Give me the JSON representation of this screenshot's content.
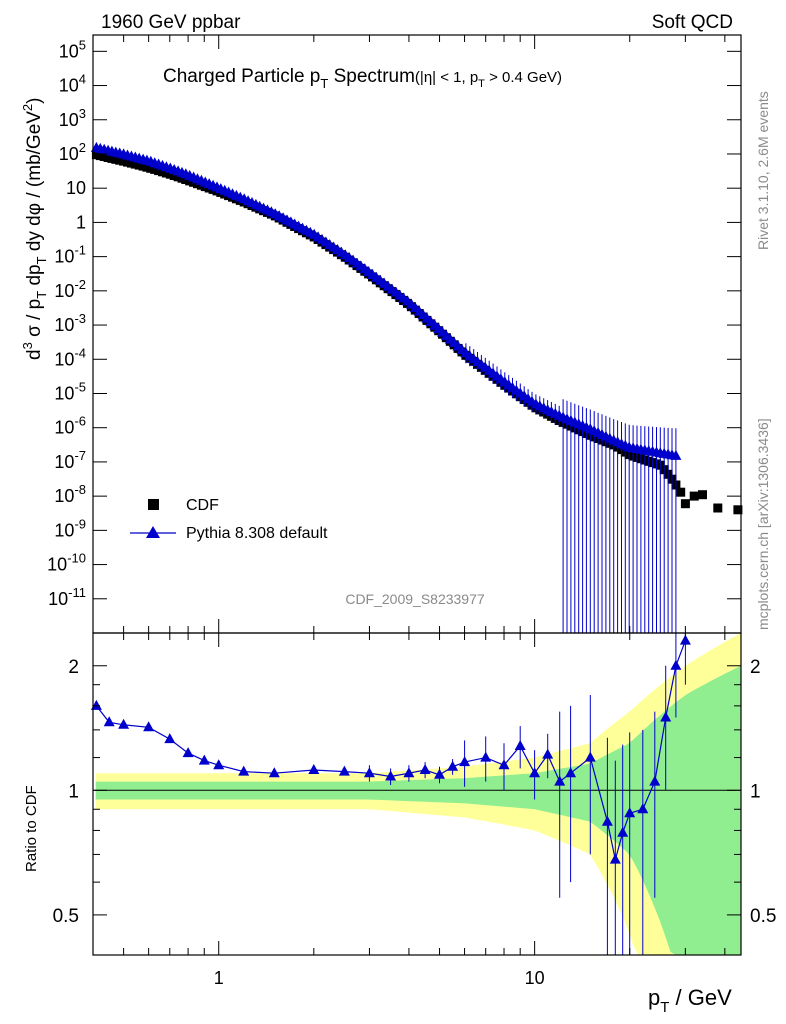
{
  "header": {
    "left": "1960 GeV ppbar",
    "right": "Soft QCD",
    "side_top": "Rivet 3.1.10,  2.6M events",
    "side_bottom": "mcplots.cern.ch [arXiv:1306.3436]",
    "analysis_id": "CDF_2009_S8233977"
  },
  "colors": {
    "cdf": "#000000",
    "pythia": "#0000cc",
    "band_inner": "#90ee90",
    "band_outer": "#ffff99"
  },
  "chart_data": [
    {
      "type": "scatter",
      "panel": "main",
      "title": "Charged Particle p_T Spectrum",
      "title_suffix": "(|η| < 1, p_T > 0.4 GeV)",
      "ylabel": "d³σ / p_T dp_T dy dφ / (mb/GeV²)",
      "xlabel": "p_T / GeV",
      "xscale": "log",
      "yscale": "log",
      "xlim": [
        0.4,
        45
      ],
      "ylim": [
        1e-12,
        300000.0
      ],
      "y_tick_labels": [
        "10^-11",
        "10^-10",
        "10^-9",
        "10^-8",
        "10^-7",
        "10^-6",
        "10^-5",
        "10^-4",
        "10^-3",
        "10^-2",
        "10^-1",
        "1",
        "10",
        "10^2",
        "10^3",
        "10^4",
        "10^5"
      ],
      "x_tick_labels": [
        "1",
        "10"
      ],
      "legend_position": "bottom-left",
      "series": [
        {
          "name": "CDF",
          "marker": "square",
          "points": [
            [
              0.41,
              95
            ],
            [
              0.5,
              62
            ],
            [
              0.6,
              40
            ],
            [
              0.7,
              26
            ],
            [
              0.8,
              17
            ],
            [
              1.0,
              8
            ],
            [
              1.2,
              4
            ],
            [
              1.5,
              1.6
            ],
            [
              2.0,
              0.38
            ],
            [
              2.5,
              0.1
            ],
            [
              3.0,
              0.03
            ],
            [
              4.0,
              0.004
            ],
            [
              5.0,
              0.00065
            ],
            [
              6.0,
              0.00014
            ],
            [
              8.0,
              1.8e-05
            ],
            [
              10.0,
              4e-06
            ],
            [
              12.0,
              1.6e-06
            ],
            [
              15.0,
              6e-07
            ],
            [
              18.0,
              3e-07
            ],
            [
              20.0,
              1.6e-07
            ],
            [
              25.0,
              8e-08
            ],
            [
              27.0,
              3.5e-08
            ],
            [
              29.0,
              1.3e-08
            ],
            [
              30.0,
              6e-09
            ],
            [
              32.0,
              1e-08
            ],
            [
              34.0,
              1.1e-08
            ],
            [
              38.0,
              4.5e-09
            ],
            [
              44.0,
              4e-09
            ]
          ]
        },
        {
          "name": "Pythia 8.308 default",
          "marker": "triangle",
          "points": [
            [
              0.41,
              150
            ],
            [
              0.5,
              97
            ],
            [
              0.6,
              62
            ],
            [
              0.7,
              38
            ],
            [
              0.8,
              24
            ],
            [
              1.0,
              10
            ],
            [
              1.2,
              4.8
            ],
            [
              1.5,
              1.8
            ],
            [
              2.0,
              0.44
            ],
            [
              2.5,
              0.115
            ],
            [
              3.0,
              0.034
            ],
            [
              4.0,
              0.0046
            ],
            [
              5.0,
              0.00072
            ],
            [
              6.0,
              0.00016
            ],
            [
              8.0,
              2.2e-05
            ],
            [
              10.0,
              5e-06
            ],
            [
              12.0,
              2.2e-06
            ],
            [
              15.0,
              9e-07
            ],
            [
              18.0,
              4e-07
            ],
            [
              20.0,
              2.6e-07
            ],
            [
              25.0,
              1.8e-07
            ],
            [
              28.0,
              1.5e-07
            ]
          ]
        }
      ]
    },
    {
      "type": "line",
      "panel": "ratio",
      "ylabel": "Ratio to CDF",
      "xscale": "log",
      "xlim": [
        0.4,
        45
      ],
      "ylim": [
        0.4,
        2.4
      ],
      "y_tick_labels": [
        "0.5",
        "1",
        "2"
      ],
      "reference": 1.0,
      "series": [
        {
          "name": "Pythia 8.308 default",
          "points": [
            [
              0.41,
              1.6
            ],
            [
              0.45,
              1.46
            ],
            [
              0.5,
              1.44
            ],
            [
              0.6,
              1.42
            ],
            [
              0.7,
              1.33
            ],
            [
              0.8,
              1.23
            ],
            [
              0.9,
              1.18
            ],
            [
              1.0,
              1.15
            ],
            [
              1.2,
              1.11
            ],
            [
              1.5,
              1.1
            ],
            [
              2.0,
              1.12
            ],
            [
              2.5,
              1.11
            ],
            [
              3.0,
              1.1
            ],
            [
              3.5,
              1.08
            ],
            [
              4.0,
              1.1
            ],
            [
              4.5,
              1.12
            ],
            [
              5.0,
              1.09
            ],
            [
              5.5,
              1.14
            ],
            [
              6.0,
              1.17
            ],
            [
              7.0,
              1.2
            ],
            [
              8.0,
              1.15
            ],
            [
              9.0,
              1.28
            ],
            [
              10.0,
              1.1
            ],
            [
              11.0,
              1.22
            ],
            [
              12.0,
              1.05
            ],
            [
              13.0,
              1.1
            ],
            [
              15.0,
              1.2
            ],
            [
              17.0,
              0.84
            ],
            [
              18.0,
              0.68
            ],
            [
              19.0,
              0.79
            ],
            [
              20.0,
              0.88
            ],
            [
              22.0,
              0.9
            ],
            [
              24.0,
              1.05
            ],
            [
              26.0,
              1.5
            ],
            [
              28.0,
              2.0
            ],
            [
              30.0,
              2.3
            ]
          ]
        }
      ],
      "band_inner_halfwidth": [
        [
          0.41,
          0.05
        ],
        [
          3.0,
          0.05
        ],
        [
          6.0,
          0.07
        ],
        [
          10.0,
          0.1
        ],
        [
          15.0,
          0.16
        ],
        [
          20.0,
          0.3
        ],
        [
          30.0,
          0.7
        ],
        [
          45.0,
          1.0
        ]
      ],
      "band_outer_halfwidth": [
        [
          0.41,
          0.1
        ],
        [
          3.0,
          0.1
        ],
        [
          6.0,
          0.14
        ],
        [
          10.0,
          0.2
        ],
        [
          15.0,
          0.3
        ],
        [
          20.0,
          0.55
        ],
        [
          30.0,
          1.0
        ],
        [
          45.0,
          1.4
        ]
      ]
    }
  ]
}
